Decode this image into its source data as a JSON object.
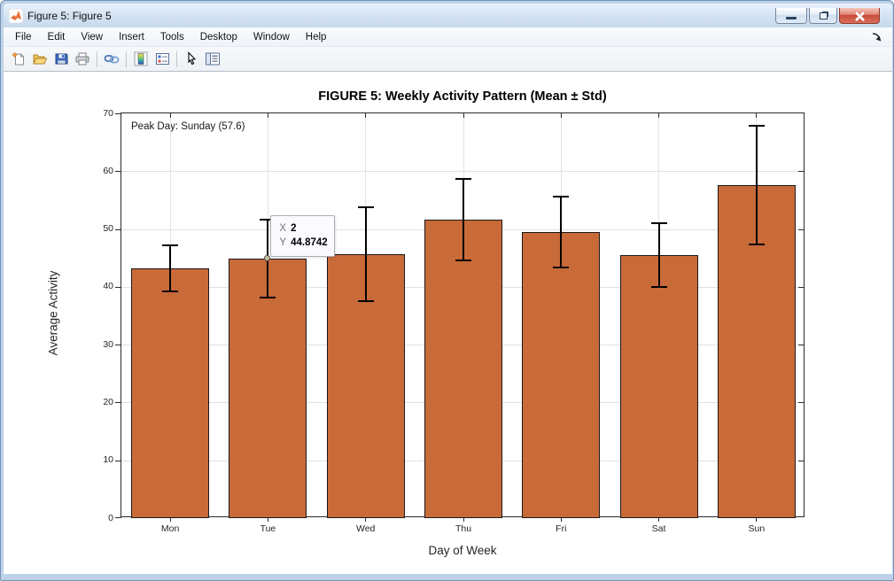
{
  "window": {
    "title": "Figure 5: Figure 5",
    "controls": {
      "minimize": "minimize",
      "restore": "restore-down",
      "close": "close"
    }
  },
  "menu": {
    "items": [
      {
        "label": "File"
      },
      {
        "label": "Edit"
      },
      {
        "label": "View"
      },
      {
        "label": "Insert"
      },
      {
        "label": "Tools"
      },
      {
        "label": "Desktop"
      },
      {
        "label": "Window"
      },
      {
        "label": "Help"
      }
    ]
  },
  "toolbar": {
    "buttons": [
      {
        "name": "new-figure"
      },
      {
        "name": "open-file"
      },
      {
        "name": "save-figure"
      },
      {
        "name": "print-figure"
      },
      {
        "name": "link-plot"
      },
      {
        "name": "insert-colorbar"
      },
      {
        "name": "insert-legend"
      },
      {
        "name": "edit-plot"
      },
      {
        "name": "property-inspector"
      }
    ]
  },
  "chart_data": {
    "type": "bar",
    "title": "FIGURE 5: Weekly Activity Pattern (Mean ± Std)",
    "xlabel": "Day of Week",
    "ylabel": "Average Activity",
    "categories": [
      "Mon",
      "Tue",
      "Wed",
      "Thu",
      "Fri",
      "Sat",
      "Sun"
    ],
    "values": [
      43.2,
      44.8742,
      45.7,
      51.6,
      49.5,
      45.5,
      57.6
    ],
    "errors": [
      4.0,
      6.8,
      8.1,
      7.0,
      6.1,
      5.5,
      10.2
    ],
    "ylim": [
      0,
      70
    ],
    "yticks": [
      0,
      10,
      20,
      30,
      40,
      50,
      60,
      70
    ],
    "grid": true,
    "legend": "none",
    "bar_color": "#c96a39",
    "bar_edge_color": "#1a1a1a",
    "annotation": "Peak Day: Sunday (57.6)",
    "datatip": {
      "x_label": "X",
      "x_value": "2",
      "y_label": "Y",
      "y_value": "44.8742"
    }
  }
}
